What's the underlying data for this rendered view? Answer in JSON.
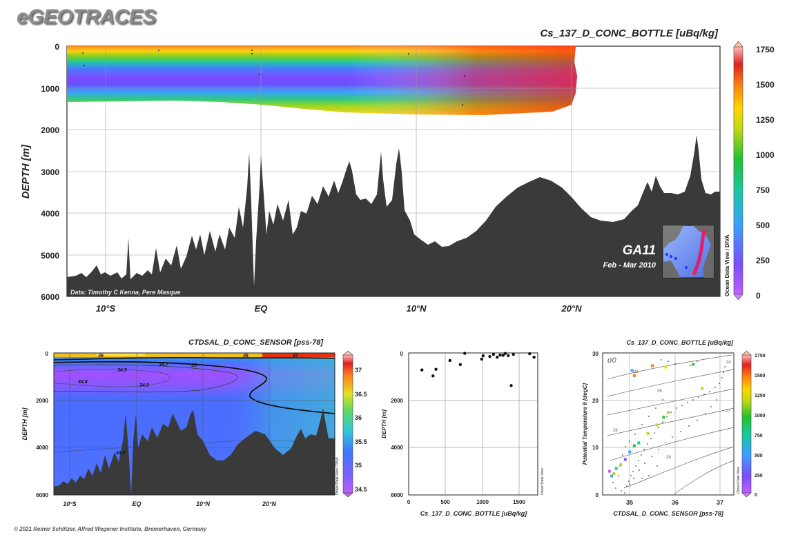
{
  "header": {
    "brand": "eGEOTRACES"
  },
  "footer": {
    "credit": "© 2021 Reiner Schlitzer, Alfred Wegener Institute, Bremerhaven, Germany"
  },
  "chart_data": [
    {
      "id": "main-section",
      "type": "heatmap",
      "title": "Cs_137_D_CONC_BOTTLE [uBq/kg]",
      "ylabel": "DEPTH [m]",
      "x_ticks": [
        "10°S",
        "EQ",
        "10°N",
        "20°N"
      ],
      "y_ticks": [
        0,
        1000,
        2000,
        3000,
        4000,
        5000,
        6000
      ],
      "ylim": [
        6000,
        0
      ],
      "colorbar": {
        "ticks": [
          1750,
          1500,
          1250,
          1000,
          750,
          500,
          250,
          0
        ],
        "label": "Ocean Data View / DIVA"
      },
      "annotations": {
        "section": "GA11",
        "period": "Feb - Mar 2010",
        "data_credit": "Data: Timothy C Kenna, Pere Masque"
      },
      "grid": true
    },
    {
      "id": "salinity-section",
      "type": "heatmap",
      "title": "CTDSAL_D_CONC_SENSOR [pss-78]",
      "ylabel": "DEPTH [m]",
      "x_ticks": [
        "10°S",
        "EQ",
        "10°N",
        "20°N"
      ],
      "y_ticks": [
        0,
        2000,
        4000,
        6000
      ],
      "ylim": [
        6000,
        0
      ],
      "contour_labels": [
        "36",
        "34.7",
        "35",
        "34.5",
        "34.8",
        "34.9",
        "34.8",
        "36",
        "37"
      ],
      "colorbar": {
        "ticks": [
          37,
          36.5,
          36,
          35.5,
          35,
          34.5
        ],
        "label": "Ocean Data View / DIVA"
      },
      "grid": true
    },
    {
      "id": "depth-scatter",
      "type": "scatter",
      "xlabel": "Cs_137_D_CONC_BOTTLE [uBq/kg]",
      "ylabel": "DEPTH [m]",
      "xlim": [
        0,
        1750
      ],
      "ylim": [
        6000,
        0
      ],
      "x_ticks": [
        0,
        500,
        1000,
        1500
      ],
      "y_ticks": [
        0,
        2000,
        4000,
        6000
      ],
      "side_label": "Ocean Data View",
      "points": [
        {
          "x": 180,
          "y": 720
        },
        {
          "x": 330,
          "y": 970
        },
        {
          "x": 370,
          "y": 690
        },
        {
          "x": 560,
          "y": 320
        },
        {
          "x": 700,
          "y": 490
        },
        {
          "x": 760,
          "y": 15
        },
        {
          "x": 990,
          "y": 260
        },
        {
          "x": 1010,
          "y": 120
        },
        {
          "x": 1100,
          "y": 150
        },
        {
          "x": 1150,
          "y": 60
        },
        {
          "x": 1200,
          "y": 180
        },
        {
          "x": 1240,
          "y": 90
        },
        {
          "x": 1280,
          "y": 100
        },
        {
          "x": 1310,
          "y": 20
        },
        {
          "x": 1350,
          "y": 110
        },
        {
          "x": 1390,
          "y": 1380
        },
        {
          "x": 1420,
          "y": 60
        },
        {
          "x": 1640,
          "y": 30
        },
        {
          "x": 1700,
          "y": 180
        }
      ],
      "grid": true
    },
    {
      "id": "ts-diagram",
      "type": "scatter",
      "title": "Cs_137_D_CONC_BOTTLE [uBq/kg]",
      "xlabel": "CTDSAL_D_CONC_SENSOR [pss-78]",
      "ylabel": "Potential Temperature θ [degC]",
      "xlim": [
        34.4,
        37.3
      ],
      "ylim": [
        0,
        30
      ],
      "x_ticks": [
        35,
        36,
        37
      ],
      "y_ticks": [
        0,
        10,
        20,
        30
      ],
      "density_label": "σ0",
      "density_contours": [
        "23",
        "24",
        "25",
        "26",
        "27",
        "28"
      ],
      "colorbar": {
        "ticks": [
          1750,
          1500,
          1250,
          1000,
          750,
          500,
          250,
          0
        ],
        "label": "Ocean Data View"
      },
      "colored_points": [
        {
          "x": 35.5,
          "y": 27.3,
          "c": 1500
        },
        {
          "x": 35.8,
          "y": 27.0,
          "c": 1450
        },
        {
          "x": 36.4,
          "y": 27.6,
          "c": 1150
        },
        {
          "x": 35.05,
          "y": 26.3,
          "c": 600
        },
        {
          "x": 35.1,
          "y": 25.2,
          "c": 1500
        },
        {
          "x": 36.6,
          "y": 22.5,
          "c": 1300
        },
        {
          "x": 35.85,
          "y": 17.4,
          "c": 1200
        },
        {
          "x": 35.75,
          "y": 16.4,
          "c": 1100
        },
        {
          "x": 35.6,
          "y": 14.8,
          "c": 1250
        },
        {
          "x": 35.4,
          "y": 13.0,
          "c": 1300
        },
        {
          "x": 35.2,
          "y": 11.0,
          "c": 900
        },
        {
          "x": 35.1,
          "y": 10.4,
          "c": 1050
        },
        {
          "x": 35.0,
          "y": 9.1,
          "c": 600
        },
        {
          "x": 34.9,
          "y": 7.5,
          "c": 450
        },
        {
          "x": 34.8,
          "y": 6.4,
          "c": 1300
        },
        {
          "x": 34.7,
          "y": 5.6,
          "c": 900
        },
        {
          "x": 34.65,
          "y": 4.5,
          "c": 1250
        },
        {
          "x": 34.6,
          "y": 4.0,
          "c": 600
        },
        {
          "x": 34.55,
          "y": 5.0,
          "c": 200
        }
      ],
      "grid": true
    }
  ]
}
